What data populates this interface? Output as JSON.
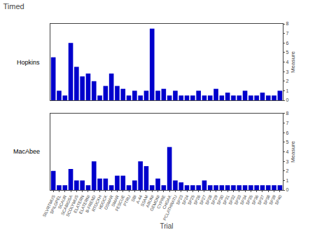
{
  "chart_data": [
    {
      "type": "bar",
      "title": "Timed",
      "annotations": [
        "Hopkins"
      ],
      "categories": [
        "SILVRTMUS",
        "SPILOPEL",
        "SCAUR",
        "SCABIOSA",
        "SCOLYMUS",
        "ELATERN",
        "ELATERNI",
        "B-FREND",
        "RTOCKH",
        "HDOCK",
        "OSMAR",
        "SMAR",
        "FESCUE",
        "PTRU",
        "SBI",
        "A-44",
        "SSAM",
        "ARUNI",
        "GEMONI",
        "CYPRE",
        "CHOAK",
        "PCLATHRATU",
        "SP23",
        "SP24",
        "SP25",
        "SP26",
        "SP27",
        "SP28",
        "SP29",
        "SP30",
        "SP31",
        "SP32",
        "SP33",
        "SP34",
        "SP35",
        "SP36",
        "SP37",
        "SP38",
        "SP39",
        "SP40"
      ],
      "values": [
        4.5,
        1.0,
        0.5,
        6.0,
        3.5,
        2.5,
        2.8,
        2.0,
        0.5,
        1.5,
        2.8,
        1.5,
        1.2,
        0.5,
        1.0,
        0.5,
        1.0,
        7.5,
        1.0,
        1.2,
        0.5,
        1.0,
        0.5,
        0.5,
        0.5,
        1.0,
        0.5,
        0.5,
        1.2,
        0.5,
        0.8,
        0.5,
        0.5,
        1.0,
        0.5,
        0.5,
        0.8,
        0.5,
        0.5,
        1.0
      ],
      "color": "#0000CC",
      "ylabel": "Measure",
      "ylim": [
        0,
        8
      ],
      "yticks": [
        0,
        1,
        2,
        3,
        4,
        5,
        6,
        7,
        8
      ],
      "grid": false,
      "tick_labels": "y"
    },
    {
      "type": "bar",
      "annotations": [
        "MacAbee"
      ],
      "categories": [
        "SILVRTMUS",
        "SPILOPEL",
        "SCAUR",
        "SCABIOSA",
        "SCOLYMUS",
        "ELATERN",
        "ELATERNI",
        "B-FREND",
        "RTOCKH",
        "HDOCK",
        "OSMAR",
        "SMAR",
        "FESCUE",
        "PTRU",
        "SBI",
        "A-44",
        "SSAM",
        "ARUNI",
        "GEMONI",
        "CYPRE",
        "CHOAK",
        "PCLATHRATU",
        "SP23",
        "SP24",
        "SP25",
        "SP26",
        "SP27",
        "SP28",
        "SP29",
        "SP30",
        "SP31",
        "SP32",
        "SP33",
        "SP34",
        "SP35",
        "SP36",
        "SP37",
        "SP38",
        "SP39",
        "SP40"
      ],
      "values": [
        2.0,
        0.5,
        0.5,
        2.2,
        1.0,
        1.0,
        0.5,
        3.0,
        1.2,
        1.2,
        0.5,
        1.5,
        1.5,
        0.5,
        1.0,
        3.0,
        2.5,
        0.5,
        1.2,
        0.5,
        4.5,
        1.0,
        0.8,
        0.5,
        0.5,
        0.5,
        1.0,
        0.5,
        0.5,
        0.5,
        0.5,
        0.5,
        0.5,
        0.5,
        0.5,
        0.5,
        0.5,
        0.5,
        0.5,
        0.5
      ],
      "color": "#0000CC",
      "xlabel": "Trial",
      "ylabel": "Measure",
      "ylim": [
        0,
        8
      ],
      "yticks": [
        0,
        1,
        2,
        3,
        4,
        5,
        6,
        7,
        8
      ],
      "grid": false
    }
  ]
}
